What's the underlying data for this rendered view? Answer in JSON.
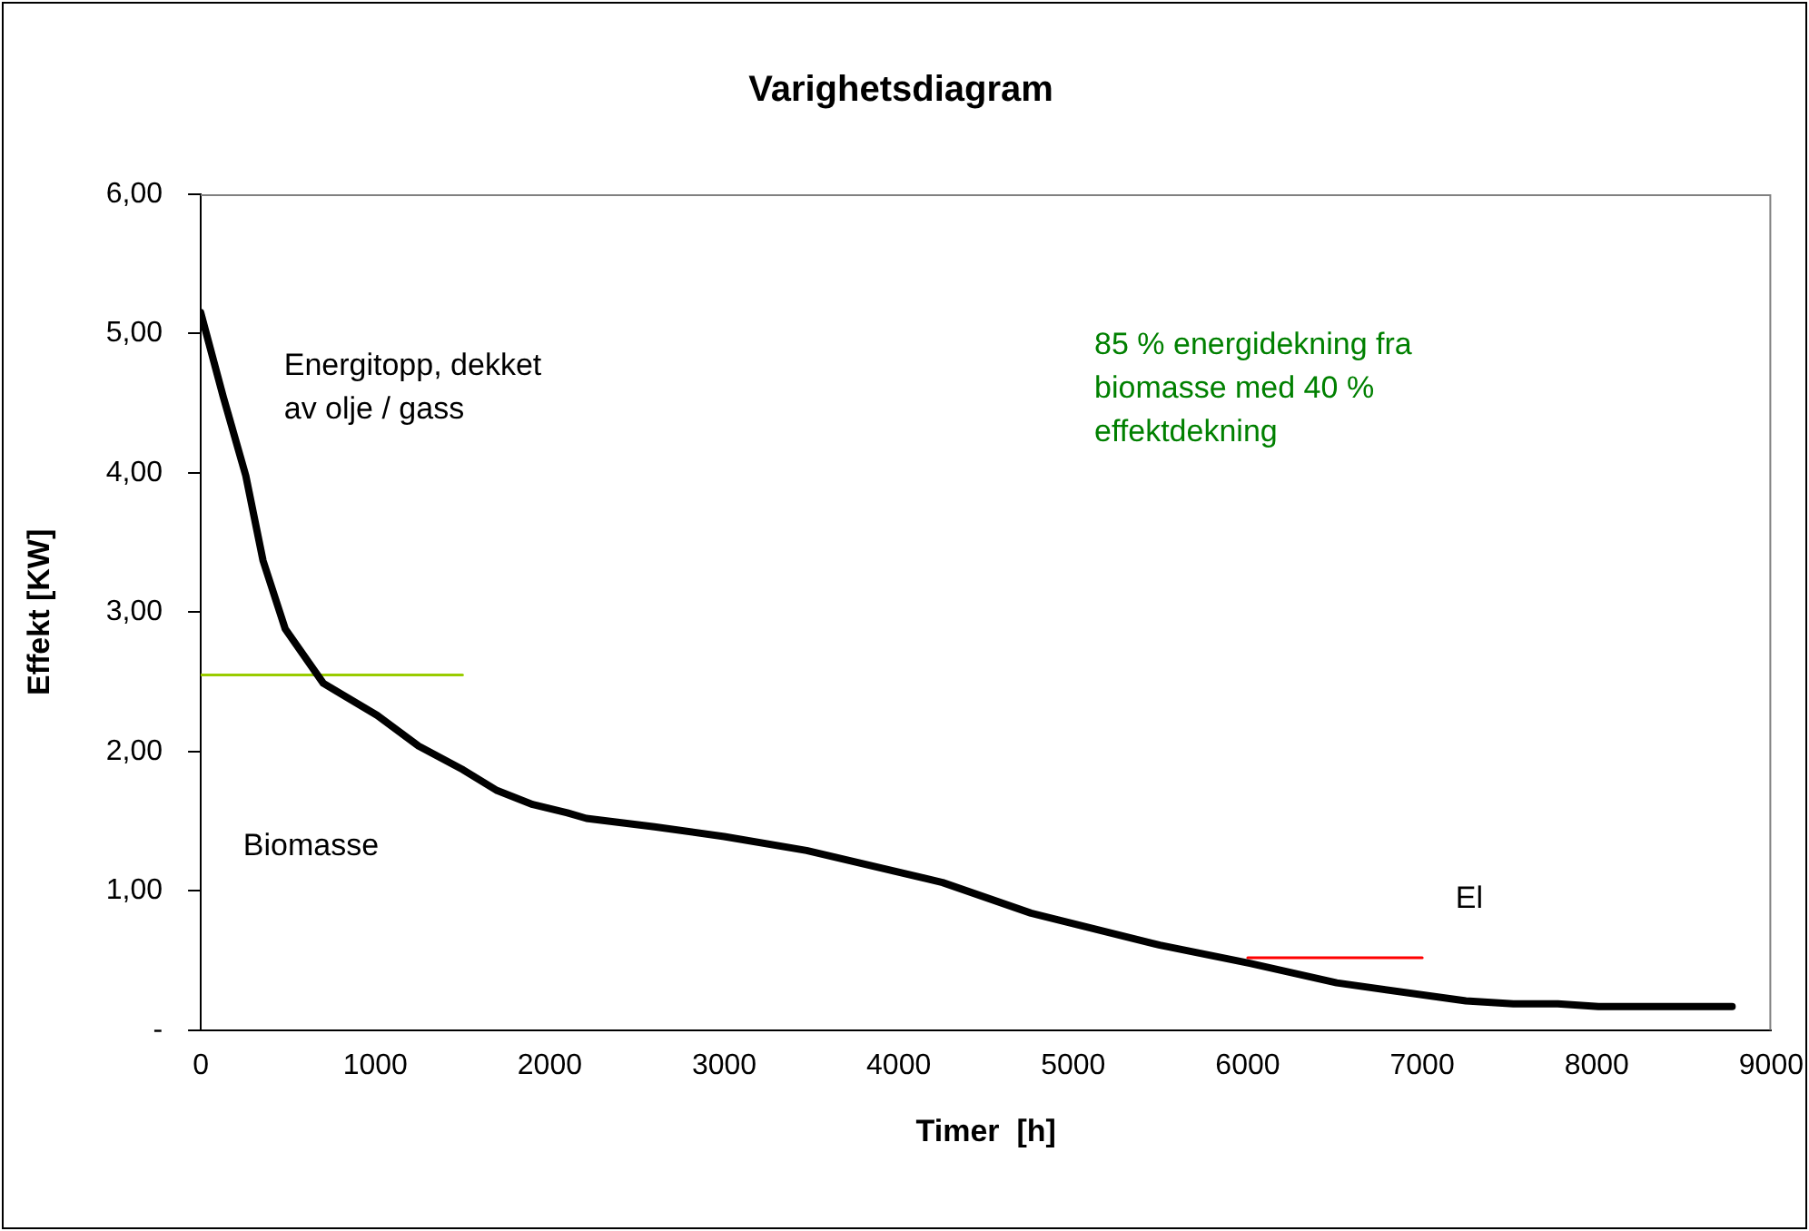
{
  "chart_data": {
    "type": "line",
    "title": "Varighetsdiagram",
    "xlabel": "Timer  [h]",
    "ylabel": "Effekt [KW]",
    "xlim": [
      0,
      9000
    ],
    "xticks": [
      0,
      1000,
      2000,
      3000,
      4000,
      5000,
      6000,
      7000,
      8000,
      9000
    ],
    "ylim": [
      0,
      6
    ],
    "yticks": [
      {
        "value": 0,
        "label": "-"
      },
      {
        "value": 1,
        "label": "1,00"
      },
      {
        "value": 2,
        "label": "2,00"
      },
      {
        "value": 3,
        "label": "3,00"
      },
      {
        "value": 4,
        "label": "4,00"
      },
      {
        "value": 5,
        "label": "5,00"
      },
      {
        "value": 6,
        "label": "6,00"
      }
    ],
    "grid": false,
    "legend": false,
    "marker": "none",
    "line_style": "solid",
    "series": [
      {
        "color": "#000000",
        "x": [
          0,
          128,
          258,
          357,
          484,
          702,
          1011,
          1248,
          1502,
          1698,
          1902,
          2101,
          2210,
          2600,
          3000,
          3472,
          4251,
          4758,
          5497,
          6012,
          6510,
          7250,
          7522,
          7777,
          8010,
          8776
        ],
        "values": [
          5.15,
          4.55,
          3.98,
          3.37,
          2.88,
          2.49,
          2.26,
          2.04,
          1.87,
          1.72,
          1.62,
          1.56,
          1.52,
          1.46,
          1.39,
          1.29,
          1.06,
          0.84,
          0.61,
          0.48,
          0.34,
          0.21,
          0.19,
          0.19,
          0.17,
          0.17
        ]
      },
      {
        "color": "#99cc00",
        "x": [
          0,
          1500
        ],
        "values": [
          2.55,
          2.55
        ]
      },
      {
        "color": "#ff0000",
        "x": [
          6000,
          7000
        ],
        "values": [
          0.52,
          0.52
        ]
      }
    ],
    "annotations": [
      "Energitopp, dekket\nav olje / gass",
      "Biomasse",
      "85 % energidekning fra\nbiomasse med 40 %\neffektdekning",
      "El"
    ]
  }
}
